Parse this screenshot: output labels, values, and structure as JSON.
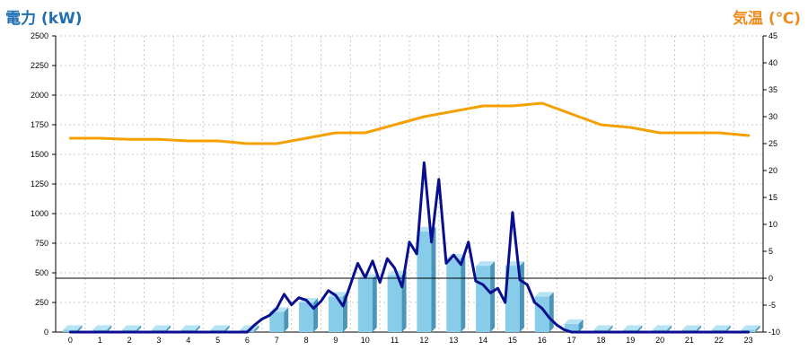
{
  "chart_data": {
    "type": "bar",
    "left_axis_title": "電力 (kW)",
    "right_axis_title": "気温 (℃)",
    "categories": [
      "0",
      "1",
      "2",
      "3",
      "4",
      "5",
      "6",
      "7",
      "8",
      "9",
      "10",
      "11",
      "12",
      "13",
      "14",
      "15",
      "16",
      "17",
      "18",
      "19",
      "20",
      "21",
      "22",
      "23"
    ],
    "y_left": {
      "min": 0,
      "max": 2500,
      "ticks": [
        "0",
        "250",
        "500",
        "750",
        "1000",
        "1250",
        "1500",
        "1750",
        "2000",
        "2250",
        "2500"
      ]
    },
    "y_right": {
      "min": -10,
      "max": 45,
      "ticks": [
        "-10",
        "-5",
        "0",
        "5",
        "10",
        "15",
        "20",
        "25",
        "30",
        "35",
        "40",
        "45"
      ]
    },
    "grid": true,
    "colors": {
      "bar_face": "#87cdea",
      "bar_side": "#4b95b8",
      "bar_top": "#b7e3f5",
      "power_line": "#0a0f8f",
      "temp_line": "#f4a000",
      "grid": "#c8c8c8",
      "zero_line": "#000000"
    },
    "series": [
      {
        "axis": "left",
        "kind": "bar",
        "values": [
          20,
          20,
          20,
          20,
          20,
          20,
          20,
          170,
          250,
          300,
          450,
          480,
          850,
          620,
          560,
          560,
          300,
          70,
          20,
          20,
          20,
          20,
          20,
          20
        ]
      },
      {
        "axis": "left",
        "kind": "line",
        "x": [
          0,
          1,
          2,
          3,
          4,
          5,
          6,
          6.25,
          6.5,
          6.75,
          7,
          7.25,
          7.5,
          7.75,
          8,
          8.25,
          8.5,
          8.75,
          9,
          9.25,
          9.5,
          9.75,
          10,
          10.25,
          10.5,
          10.75,
          11,
          11.25,
          11.5,
          11.75,
          12,
          12.25,
          12.5,
          12.75,
          13,
          13.25,
          13.5,
          13.75,
          14,
          14.25,
          14.5,
          14.75,
          15,
          15.25,
          15.5,
          15.75,
          16,
          16.25,
          16.5,
          16.75,
          17,
          17.25,
          17.5,
          18,
          19,
          20,
          21,
          22,
          23
        ],
        "values": [
          0,
          0,
          0,
          0,
          0,
          0,
          0,
          60,
          110,
          140,
          200,
          320,
          230,
          290,
          270,
          200,
          260,
          350,
          310,
          220,
          400,
          580,
          460,
          600,
          420,
          620,
          540,
          380,
          760,
          660,
          1430,
          760,
          1290,
          580,
          650,
          570,
          760,
          430,
          400,
          330,
          370,
          250,
          1010,
          440,
          400,
          250,
          200,
          120,
          60,
          20,
          0,
          0,
          0,
          0,
          0,
          0,
          0,
          0,
          0
        ]
      },
      {
        "axis": "right",
        "kind": "line",
        "x": [
          0,
          1,
          2,
          3,
          4,
          5,
          6,
          7,
          8,
          9,
          10,
          11,
          12,
          13,
          14,
          15,
          16,
          17,
          18,
          19,
          20,
          21,
          22,
          23
        ],
        "values": [
          26,
          26,
          25.8,
          25.8,
          25.5,
          25.5,
          25,
          25,
          26,
          27,
          27,
          28.5,
          30,
          31,
          32,
          32,
          32.5,
          30.5,
          28.5,
          28,
          27,
          27,
          27,
          26.5
        ]
      }
    ]
  }
}
